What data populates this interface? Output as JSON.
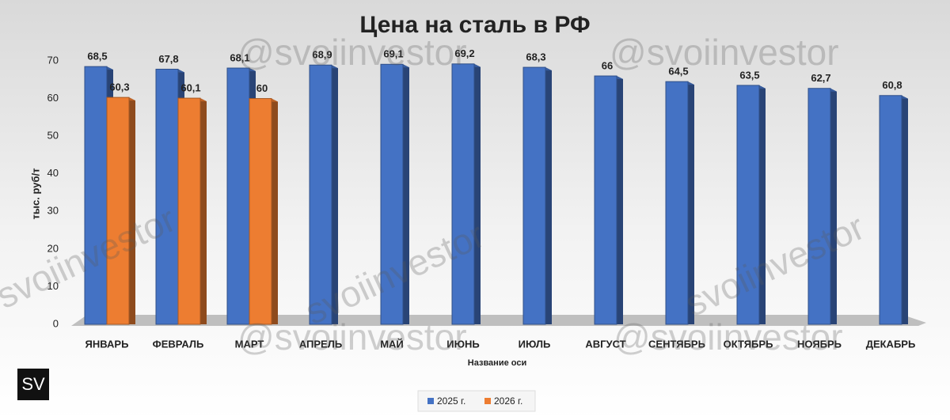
{
  "chart_data": {
    "type": "bar",
    "title": "Цена на сталь в РФ",
    "y_axis_label": "тыс. руб/т",
    "x_axis_label": "Название оси",
    "categories": [
      "ЯНВАРЬ",
      "ФЕВРАЛЬ",
      "МАРТ",
      "АПРЕЛЬ",
      "МАЙ",
      "ИЮНЬ",
      "ИЮЛЬ",
      "АВГУСТ",
      "СЕНТЯБРЬ",
      "ОКТЯБРЬ",
      "НОЯБРЬ",
      "ДЕКАБРЬ"
    ],
    "series": [
      {
        "name": "2025 г.",
        "color": "#4472c4",
        "values": [
          68.5,
          67.8,
          68.1,
          68.9,
          69.1,
          69.2,
          68.3,
          66,
          64.5,
          63.5,
          62.7,
          60.8
        ],
        "value_labels": [
          "68,5",
          "67,8",
          "68,1",
          "68,9",
          "69,1",
          "69,2",
          "68,3",
          "66",
          "64,5",
          "63,5",
          "62,7",
          "60,8"
        ]
      },
      {
        "name": "2026 г.",
        "color": "#ed7d31",
        "values": [
          60.3,
          60.1,
          60,
          null,
          null,
          null,
          null,
          null,
          null,
          null,
          null,
          null
        ],
        "value_labels": [
          "60,3",
          "60,1",
          "60",
          null,
          null,
          null,
          null,
          null,
          null,
          null,
          null,
          null
        ]
      }
    ],
    "ylim": [
      0,
      70
    ],
    "yticks": [
      0,
      10,
      20,
      30,
      40,
      50,
      60,
      70
    ],
    "grid": false,
    "legend": "bottom",
    "watermark": "@svoiinvestor",
    "watermark_alt": "svoiinvestor",
    "logo": "SV"
  }
}
